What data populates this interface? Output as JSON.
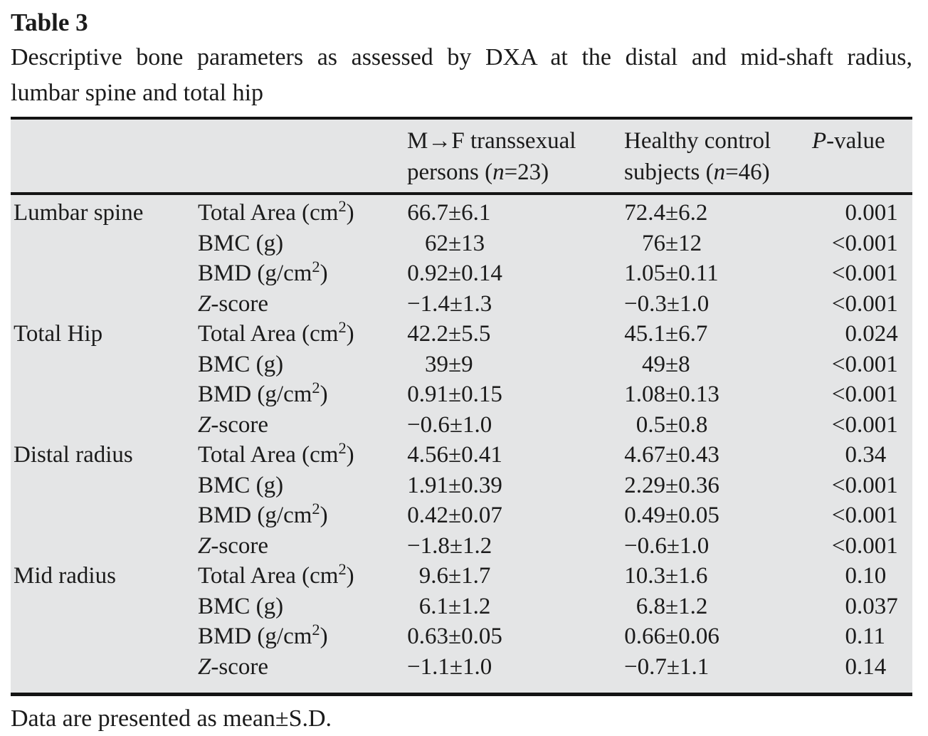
{
  "title": "Table 3",
  "caption_line1": "Descriptive bone parameters as assessed by DXA at the distal and mid-shaft radius,",
  "caption_line2": "lumbar spine and total hip",
  "footnote": "Data are presented as mean±S.D.",
  "colors": {
    "table_background": "#e4e5e6",
    "rule": "#141414",
    "text": "#1b1b1b"
  },
  "table": {
    "header": {
      "mtf": {
        "line1": "M→F transsexual",
        "line2_pre": "persons (",
        "line2_var": "n",
        "line2_post": "=23)"
      },
      "control": {
        "line1": "Healthy control",
        "line2_pre": "subjects (",
        "line2_var": "n",
        "line2_post": "=46)"
      },
      "pvalue": {
        "var": "P",
        "rest": "-value"
      }
    },
    "groups": [
      {
        "region": "Lumbar spine",
        "rows": [
          {
            "parameter": "Total Area (cm²)",
            "mtf": "66.7±6.1",
            "control": "72.4±6.2",
            "p": "0.001"
          },
          {
            "parameter": "BMC (g)",
            "mtf": "62±13",
            "control": "76±12",
            "p": "<0.001"
          },
          {
            "parameter": "BMD (g/cm²)",
            "mtf": "0.92±0.14",
            "control": "1.05±0.11",
            "p": "<0.001"
          },
          {
            "parameter": "*Z*-score",
            "mtf": "−1.4±1.3",
            "control": "−0.3±1.0",
            "p": "<0.001"
          }
        ]
      },
      {
        "region": "Total Hip",
        "rows": [
          {
            "parameter": "Total Area (cm²)",
            "mtf": "42.2±5.5",
            "control": "45.1±6.7",
            "p": "0.024"
          },
          {
            "parameter": "BMC (g)",
            "mtf": "39±9",
            "control": "49±8",
            "p": "<0.001"
          },
          {
            "parameter": "BMD (g/cm²)",
            "mtf": "0.91±0.15",
            "control": "1.08±0.13",
            "p": "<0.001"
          },
          {
            "parameter": "*Z*-score",
            "mtf": "−0.6±1.0",
            "control": "0.5±0.8",
            "p": "<0.001"
          }
        ]
      },
      {
        "region": "Distal radius",
        "rows": [
          {
            "parameter": "Total Area (cm²)",
            "mtf": "4.56±0.41",
            "control": "4.67±0.43",
            "p": "0.34"
          },
          {
            "parameter": "BMC (g)",
            "mtf": "1.91±0.39",
            "control": "2.29±0.36",
            "p": "<0.001"
          },
          {
            "parameter": "BMD (g/cm²)",
            "mtf": "0.42±0.07",
            "control": "0.49±0.05",
            "p": "<0.001"
          },
          {
            "parameter": "*Z*-score",
            "mtf": "−1.8±1.2",
            "control": "−0.6±1.0",
            "p": "<0.001"
          }
        ]
      },
      {
        "region": "Mid radius",
        "rows": [
          {
            "parameter": "Total Area (cm²)",
            "mtf": "9.6±1.7",
            "control": "10.3±1.6",
            "p": "0.10"
          },
          {
            "parameter": "BMC (g)",
            "mtf": "6.1±1.2",
            "control": "6.8±1.2",
            "p": "0.037"
          },
          {
            "parameter": "BMD (g/cm²)",
            "mtf": "0.63±0.05",
            "control": "0.66±0.06",
            "p": "0.11"
          },
          {
            "parameter": "*Z*-score",
            "mtf": "−1.1±1.0",
            "control": "−0.7±1.1",
            "p": "0.14"
          }
        ]
      }
    ]
  }
}
